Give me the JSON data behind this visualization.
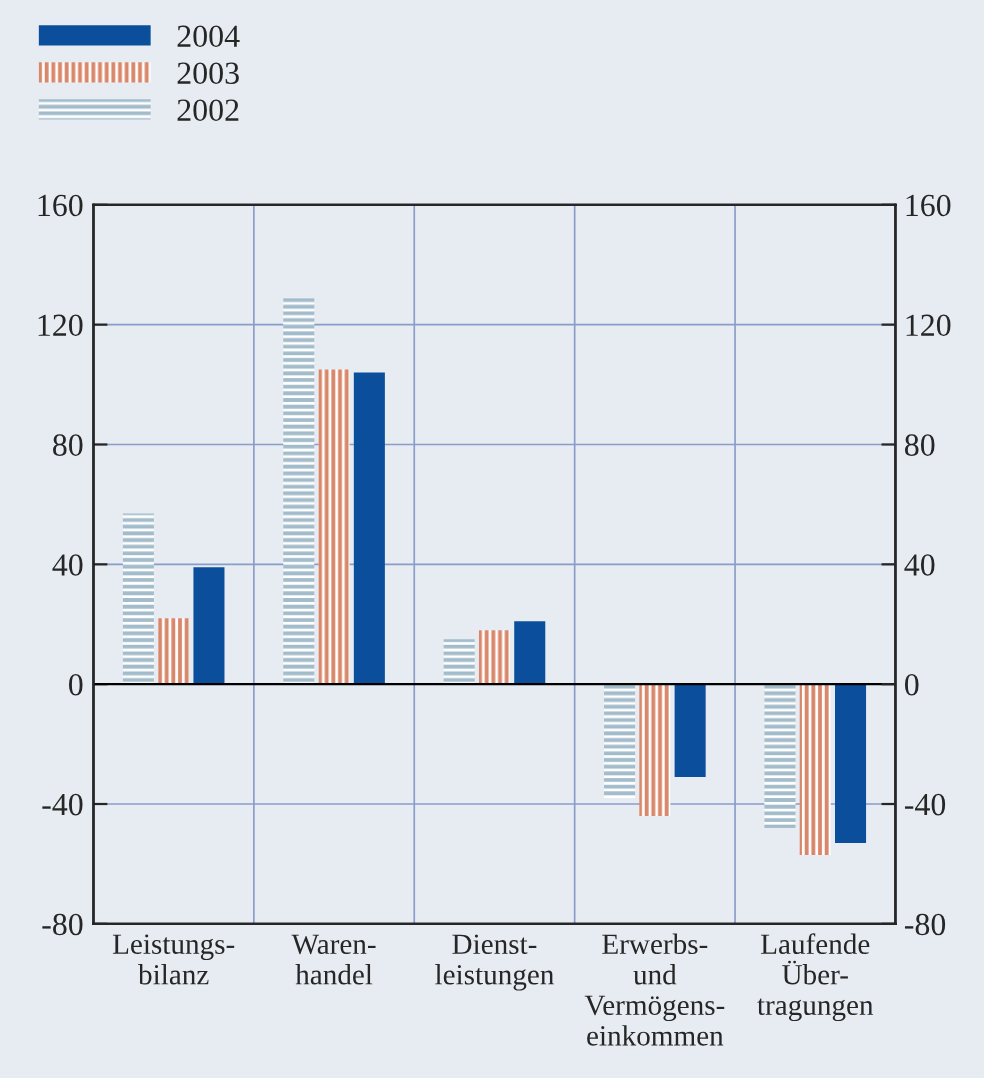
{
  "chart_data": {
    "type": "bar",
    "categories": [
      "Leistungs-\nbilanz",
      "Waren-\nhandel",
      "Dienst-\nleistungen",
      "Erwerbs-\nund\nVermögens-\neinkommen",
      "Laufende\nÜber-\ntragungen"
    ],
    "series": [
      {
        "name": "2002",
        "color": "#a3bccb",
        "values": [
          57,
          129,
          15,
          -38,
          -48
        ]
      },
      {
        "name": "2003",
        "color": "#d9876a",
        "values": [
          22,
          105,
          18,
          -44,
          -57
        ]
      },
      {
        "name": "2004",
        "color": "#0b4f9c",
        "values": [
          39,
          104,
          21,
          -31,
          -53
        ]
      }
    ],
    "ylim": [
      -80,
      160
    ],
    "yticks": [
      -80,
      -40,
      0,
      40,
      80,
      120,
      160
    ],
    "y2lim": [
      -80,
      160
    ],
    "y2ticks": [
      -80,
      -40,
      0,
      40,
      80,
      120,
      160
    ],
    "grid": true,
    "legend": "top left"
  }
}
